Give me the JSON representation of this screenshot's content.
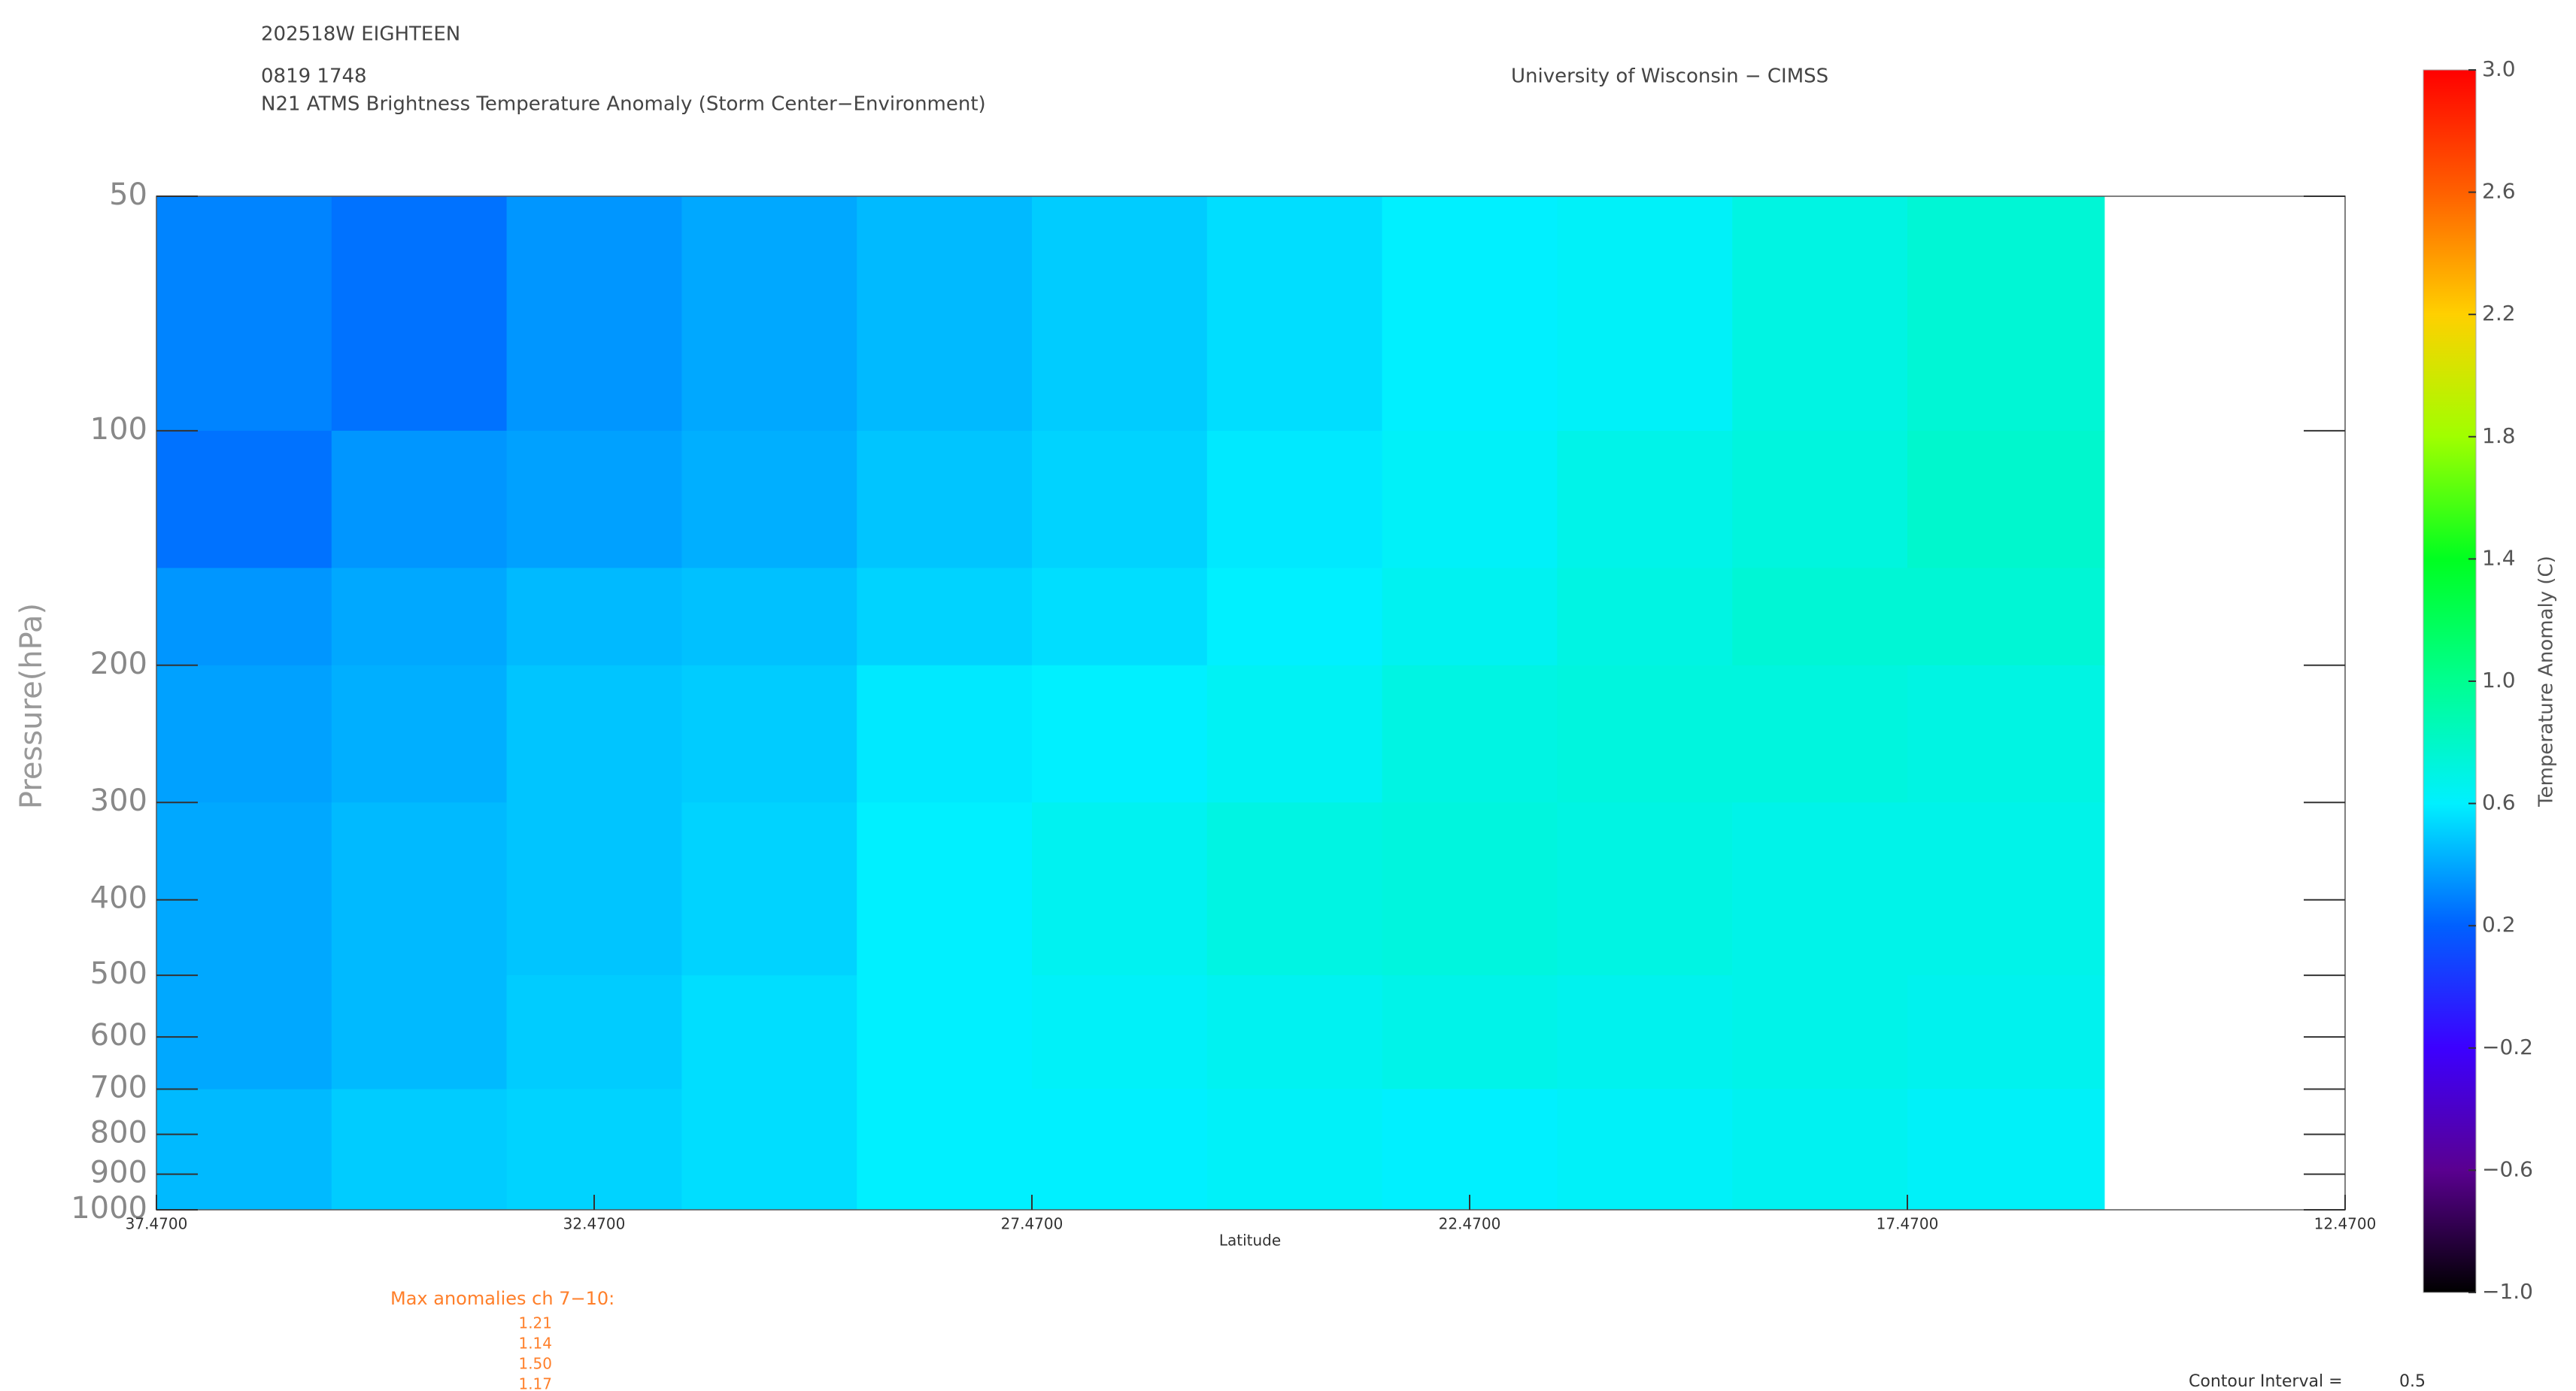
{
  "chart_data": {
    "type": "contour",
    "storm_id": "202518W EIGHTEEN",
    "datetime": "0819 1748",
    "title": "N21 ATMS Brightness Temperature Anomaly (Storm Center−Environment)",
    "source": "University of Wisconsin − CIMSS",
    "x_label": "Latitude",
    "y_label": "Pressure(hPa)",
    "colorbar_label": "Temperature Anomaly (C)",
    "xlim": [
      37.47,
      12.47
    ],
    "xticks": [
      {
        "value": 37.47,
        "label": "37.4700"
      },
      {
        "value": 32.47,
        "label": "32.4700"
      },
      {
        "value": 27.47,
        "label": "27.4700"
      },
      {
        "value": 22.47,
        "label": "22.4700"
      },
      {
        "value": 17.47,
        "label": "17.4700"
      },
      {
        "value": 12.47,
        "label": "12.4700"
      }
    ],
    "ylim": [
      50,
      1000
    ],
    "log_y": true,
    "yticks": [
      50,
      100,
      200,
      300,
      400,
      500,
      600,
      700,
      800,
      900,
      1000
    ],
    "x_bins": [
      37.47,
      35.47,
      33.47,
      31.47,
      29.47,
      27.47,
      25.47,
      23.47,
      21.47,
      19.47,
      17.47,
      15.22
    ],
    "y_bins": [
      50,
      100,
      150,
      200,
      300,
      500,
      700,
      1000
    ],
    "values": [
      [
        0.3,
        0.25,
        0.35,
        0.4,
        0.45,
        0.5,
        0.55,
        0.6,
        0.62,
        0.7,
        0.75
      ],
      [
        0.25,
        0.35,
        0.38,
        0.42,
        0.48,
        0.52,
        0.58,
        0.62,
        0.68,
        0.72,
        0.78
      ],
      [
        0.35,
        0.4,
        0.45,
        0.47,
        0.52,
        0.55,
        0.6,
        0.65,
        0.7,
        0.75,
        0.75
      ],
      [
        0.38,
        0.42,
        0.48,
        0.5,
        0.58,
        0.6,
        0.64,
        0.7,
        0.72,
        0.72,
        0.7
      ],
      [
        0.4,
        0.45,
        0.48,
        0.52,
        0.6,
        0.65,
        0.7,
        0.72,
        0.7,
        0.68,
        0.68
      ],
      [
        0.4,
        0.45,
        0.5,
        0.55,
        0.6,
        0.62,
        0.65,
        0.68,
        0.66,
        0.68,
        0.66
      ],
      [
        0.45,
        0.5,
        0.52,
        0.55,
        0.6,
        0.6,
        0.62,
        0.6,
        0.62,
        0.65,
        0.62
      ]
    ],
    "zlim": [
      -1,
      3
    ],
    "zticks": [
      {
        "value": -1,
        "label": "−1.0"
      },
      {
        "value": -0.6,
        "label": "−0.6"
      },
      {
        "value": -0.2,
        "label": "−0.2"
      },
      {
        "value": 0.2,
        "label": "0.2"
      },
      {
        "value": 0.6,
        "label": "0.6"
      },
      {
        "value": 1,
        "label": "1.0"
      },
      {
        "value": 1.4,
        "label": "1.4"
      },
      {
        "value": 1.8,
        "label": "1.8"
      },
      {
        "value": 2.2,
        "label": "2.2"
      },
      {
        "value": 2.6,
        "label": "2.6"
      },
      {
        "value": 3,
        "label": "3.0"
      }
    ],
    "colormap": [
      "#000000",
      "#5a0090",
      "#3c00ff",
      "#0060ff",
      "#00f0ff",
      "#00ff90",
      "#00ff20",
      "#a0ff00",
      "#ffd000",
      "#ff6000",
      "#ff0000"
    ],
    "max_anomalies": {
      "label": "Max anomalies ch 7−10:",
      "values": [
        1.21,
        1.14,
        1.5,
        1.17
      ],
      "value_labels": [
        "1.21",
        "1.14",
        "1.50",
        "1.17"
      ],
      "color": "#ff7f2a"
    },
    "contour_interval_label": "Contour Interval =",
    "contour_interval": 0.5
  }
}
